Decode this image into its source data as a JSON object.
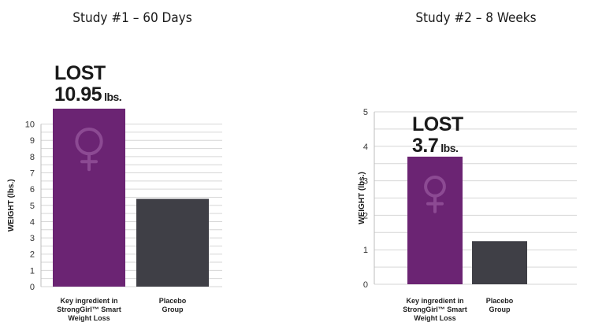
{
  "chart_data": [
    {
      "type": "bar",
      "title": "Study #1 – 60 Days",
      "ylabel": "WEIGHT (lbs.)",
      "xlabel": "",
      "ylim": [
        0,
        10.95
      ],
      "yticks": [
        0,
        1,
        2,
        3,
        4,
        5,
        6,
        7,
        8,
        9,
        10
      ],
      "categories": [
        [
          "Key ingredient in",
          "StrongGirl™ Smart",
          "Weight Loss"
        ],
        [
          "Placebo",
          "Group"
        ]
      ],
      "values": [
        10.95,
        5.4
      ],
      "colors": [
        "#6b2473",
        "#3f3f46"
      ],
      "icon": "female-symbol-icon",
      "annotation": {
        "top": "LOST",
        "value": "10.95",
        "unit": "lbs."
      },
      "grid": true
    },
    {
      "type": "bar",
      "title": "Study #2 – 8 Weeks",
      "ylabel": "WEIGHT (lbs.)",
      "xlabel": "",
      "ylim": [
        0,
        5
      ],
      "yticks": [
        0,
        1,
        2,
        3,
        4,
        5
      ],
      "categories": [
        [
          "Key ingredient in",
          "StrongGirl™ Smart",
          "Weight Loss"
        ],
        [
          "Placebo",
          "Group"
        ]
      ],
      "values": [
        3.7,
        1.25
      ],
      "colors": [
        "#6b2473",
        "#3f3f46"
      ],
      "icon": "female-symbol-icon",
      "annotation": {
        "top": "LOST",
        "value": "3.7",
        "unit": "lbs."
      },
      "grid": true
    }
  ]
}
